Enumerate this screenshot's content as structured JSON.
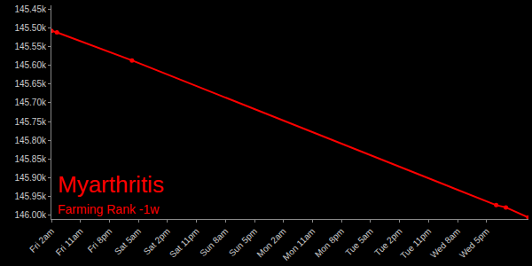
{
  "chart_data": {
    "type": "line",
    "title": "Myarthritis",
    "subtitle": "Farming Rank -1w",
    "color": "#ff0000",
    "marker": "circle",
    "grid": false,
    "x": [
      0,
      1.7,
      25,
      138,
      141,
      148
    ],
    "values": [
      145508,
      145512,
      145587,
      145973,
      145979,
      146006
    ],
    "xlim": [
      0,
      148
    ],
    "xticks": [
      {
        "value": 0,
        "label": "Fri 2am"
      },
      {
        "value": 9,
        "label": "Fri 11am"
      },
      {
        "value": 18,
        "label": "Fri 8pm"
      },
      {
        "value": 27,
        "label": "Sat 5am"
      },
      {
        "value": 36,
        "label": "Sat 2pm"
      },
      {
        "value": 45,
        "label": "Sat 11pm"
      },
      {
        "value": 54,
        "label": "Sun 8am"
      },
      {
        "value": 63,
        "label": "Sun 5pm"
      },
      {
        "value": 72,
        "label": "Mon 2am"
      },
      {
        "value": 81,
        "label": "Mon 11am"
      },
      {
        "value": 90,
        "label": "Mon 8pm"
      },
      {
        "value": 99,
        "label": "Tue 5am"
      },
      {
        "value": 108,
        "label": "Tue 2pm"
      },
      {
        "value": 117,
        "label": "Tue 11pm"
      },
      {
        "value": 126,
        "label": "Wed 8am"
      },
      {
        "value": 135,
        "label": "Wed 5pm"
      }
    ],
    "ylim": [
      146010,
      145440
    ],
    "yticks": [
      {
        "value": 145450,
        "label": "145.45k"
      },
      {
        "value": 145500,
        "label": "145.50k"
      },
      {
        "value": 145550,
        "label": "145.55k"
      },
      {
        "value": 145600,
        "label": "145.60k"
      },
      {
        "value": 145650,
        "label": "145.65k"
      },
      {
        "value": 145700,
        "label": "145.70k"
      },
      {
        "value": 145750,
        "label": "145.75k"
      },
      {
        "value": 145800,
        "label": "145.80k"
      },
      {
        "value": 145850,
        "label": "145.85k"
      },
      {
        "value": 145900,
        "label": "145.90k"
      },
      {
        "value": 145950,
        "label": "145.95k"
      },
      {
        "value": 146000,
        "label": "146.00k"
      }
    ]
  }
}
